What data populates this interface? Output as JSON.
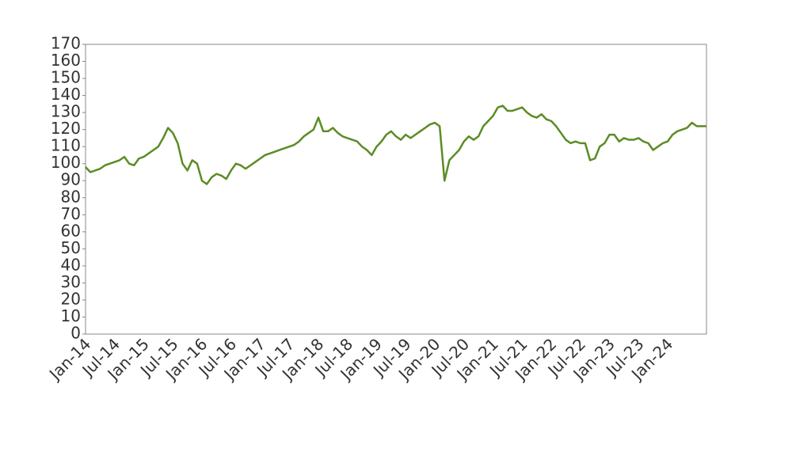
{
  "chart_data": {
    "type": "line",
    "categories": [
      "Jan-14",
      null,
      null,
      null,
      null,
      null,
      "Jul-14",
      null,
      null,
      null,
      null,
      null,
      "Jan-15",
      null,
      null,
      null,
      null,
      null,
      "Jul-15",
      null,
      null,
      null,
      null,
      null,
      "Jan-16",
      null,
      null,
      null,
      null,
      null,
      "Jul-16",
      null,
      null,
      null,
      null,
      null,
      "Jan-17",
      null,
      null,
      null,
      null,
      null,
      "Jul-17",
      null,
      null,
      null,
      null,
      null,
      "Jan-18",
      null,
      null,
      null,
      null,
      null,
      "Jul-18",
      null,
      null,
      null,
      null,
      null,
      "Jan-19",
      null,
      null,
      null,
      null,
      null,
      "Jul-19",
      null,
      null,
      null,
      null,
      null,
      "Jan-20",
      null,
      null,
      null,
      null,
      null,
      "Jul-20",
      null,
      null,
      null,
      null,
      null,
      "Jan-21",
      null,
      null,
      null,
      null,
      null,
      "Jul-21",
      null,
      null,
      null,
      null,
      null,
      "Jan-22",
      null,
      null,
      null,
      null,
      null,
      "Jul-22",
      null,
      null,
      null,
      null,
      null,
      "Jan-23",
      null,
      null,
      null,
      null,
      null,
      "Jul-23",
      null,
      null,
      null,
      null,
      null,
      "Jan-24",
      null,
      null,
      null,
      null,
      null,
      null,
      null,
      null
    ],
    "values": [
      98,
      95,
      96,
      97,
      99,
      100,
      101,
      102,
      104,
      100,
      99,
      103,
      104,
      106,
      108,
      110,
      115,
      121,
      118,
      112,
      100,
      96,
      102,
      100,
      90,
      88,
      92,
      94,
      93,
      91,
      96,
      100,
      99,
      97,
      99,
      101,
      103,
      105,
      106,
      107,
      108,
      109,
      110,
      111,
      113,
      116,
      118,
      120,
      127,
      119,
      119,
      121,
      118,
      116,
      115,
      114,
      113,
      110,
      108,
      105,
      110,
      113,
      117,
      119,
      116,
      114,
      117,
      115,
      117,
      119,
      121,
      123,
      124,
      122,
      90,
      102,
      105,
      108,
      113,
      116,
      114,
      116,
      122,
      125,
      128,
      133,
      134,
      131,
      131,
      132,
      133,
      130,
      128,
      127,
      129,
      126,
      125,
      122,
      118,
      114,
      112,
      113,
      112,
      112,
      102,
      103,
      110,
      112,
      117,
      117,
      113,
      115,
      114,
      114,
      115,
      113,
      112,
      108,
      110,
      112,
      113,
      117,
      119,
      120,
      121,
      124,
      122,
      122,
      122
    ],
    "color": "#5b8c25",
    "ylim": [
      0,
      170
    ],
    "yticks": [
      0,
      10,
      20,
      30,
      40,
      50,
      60,
      70,
      80,
      90,
      100,
      110,
      120,
      130,
      140,
      150,
      160,
      170
    ]
  }
}
